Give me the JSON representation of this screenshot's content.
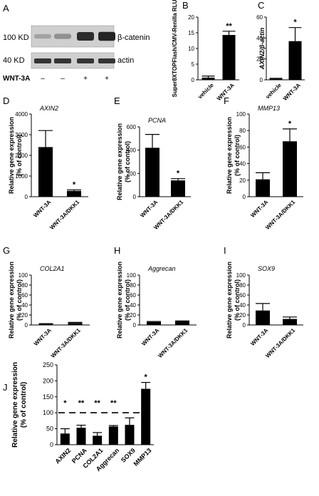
{
  "colors": {
    "bar": "#000000",
    "text": "#000000",
    "blot_bg": "#cfcfcf",
    "blot_band": "#1a1a1a"
  },
  "panel_a": {
    "letter": "A",
    "markers": [
      "100 KD",
      "40 KD"
    ],
    "bands": [
      "β-catenin",
      "actin"
    ],
    "treatment_label": "WNT-3A",
    "treatment_signs": [
      "–",
      "–",
      "+",
      "+"
    ],
    "beta_catenin_intensity": [
      0.25,
      0.35,
      0.9,
      0.95
    ],
    "actin_intensity": [
      0.85,
      0.85,
      0.85,
      0.85
    ]
  },
  "chart_data": [
    {
      "id": "B",
      "type": "bar",
      "title": "",
      "ylabel": "Super8XTOPFlash/CMV-Renilla RLU",
      "ylabel_italic": false,
      "ylim": [
        0,
        20
      ],
      "yticks": [
        0,
        5,
        10,
        15,
        20
      ],
      "categories": [
        "vehicle",
        "WNT-3A"
      ],
      "values": [
        0.7,
        14.3
      ],
      "errors": [
        0.5,
        1.2
      ],
      "significance": [
        "",
        "**"
      ]
    },
    {
      "id": "C",
      "type": "bar",
      "title": "",
      "ylabel": "AXIN2/β-actin",
      "ylabel_italic": true,
      "ylim": [
        0,
        60
      ],
      "yticks": [
        0,
        20,
        40,
        60
      ],
      "categories": [
        "vehicle",
        "WNT-3A"
      ],
      "values": [
        1,
        37
      ],
      "errors": [
        0.5,
        13
      ],
      "significance": [
        "",
        "*"
      ]
    },
    {
      "id": "D",
      "type": "bar",
      "title": "AXIN2",
      "ylabel": "Relative gene expression (% of control)",
      "ylabel_italic": false,
      "ylim": [
        0,
        4000
      ],
      "yticks": [
        0,
        1000,
        2000,
        3000,
        4000
      ],
      "categories": [
        "WNT-3A",
        "WNT-3A/DKK1"
      ],
      "values": [
        2400,
        280
      ],
      "errors": [
        800,
        50
      ],
      "significance": [
        "",
        "*"
      ]
    },
    {
      "id": "E",
      "type": "bar",
      "title": "PCNA",
      "ylabel": "Relative gene expression (% of control)",
      "ylabel_italic": false,
      "ylim": [
        0,
        600
      ],
      "yticks": [
        0,
        200,
        400,
        600
      ],
      "categories": [
        "WNT-3A",
        "WNT-3A/DKK1"
      ],
      "values": [
        420,
        140
      ],
      "errors": [
        115,
        15
      ],
      "significance": [
        "",
        "*"
      ]
    },
    {
      "id": "F",
      "type": "bar",
      "title": "MMP13",
      "ylabel": "Relative gene expression (% of control)",
      "ylabel_italic": false,
      "ylim": [
        0,
        100
      ],
      "yticks": [
        0,
        20,
        40,
        60,
        80,
        100
      ],
      "categories": [
        "WNT-3A",
        "WNT-3A/DKK1"
      ],
      "values": [
        21,
        67
      ],
      "errors": [
        8,
        15
      ],
      "significance": [
        "",
        "*"
      ]
    },
    {
      "id": "G",
      "type": "bar",
      "title": "COL2A1",
      "ylabel": "Relative gene expression (% of control)",
      "ylabel_italic": false,
      "ylim": [
        0,
        100
      ],
      "yticks": [
        0,
        20,
        40,
        60,
        80,
        100
      ],
      "categories": [
        "WNT-3A",
        "WNT-3A/DKK1"
      ],
      "values": [
        2,
        4
      ],
      "errors": [
        0.8,
        1.2
      ],
      "significance": [
        "",
        ""
      ]
    },
    {
      "id": "H",
      "type": "bar",
      "title": "Aggrecan",
      "ylabel": "Relative gene expression (% of control)",
      "ylabel_italic": false,
      "ylim": [
        0,
        100
      ],
      "yticks": [
        0,
        20,
        40,
        60,
        80,
        100
      ],
      "categories": [
        "WNT-3A",
        "WNT-3A/DKK1"
      ],
      "values": [
        6,
        7
      ],
      "errors": [
        1,
        1
      ],
      "significance": [
        "",
        ""
      ]
    },
    {
      "id": "I",
      "type": "bar",
      "title": "SOX9",
      "ylabel": "Relative gene expression (% of control)",
      "ylabel_italic": false,
      "ylim": [
        0,
        100
      ],
      "yticks": [
        0,
        20,
        40,
        60,
        80,
        100
      ],
      "categories": [
        "WNT-3A",
        "WNT-3A/DKK1"
      ],
      "values": [
        29,
        12
      ],
      "errors": [
        14,
        4
      ],
      "significance": [
        "",
        ""
      ]
    },
    {
      "id": "J",
      "type": "bar",
      "title": "",
      "ylabel": "Relative gene expression (% of control)",
      "ylabel_italic": false,
      "ylim": [
        0,
        250
      ],
      "yticks": [
        0,
        50,
        100,
        150,
        200,
        250
      ],
      "categories": [
        "AXIN2",
        "PCNA",
        "COL2A1",
        "Aggrecan",
        "SOX9",
        "MMP13"
      ],
      "values": [
        35,
        53,
        28,
        57,
        62,
        175
      ],
      "errors": [
        15,
        8,
        10,
        3,
        22,
        20
      ],
      "significance": [
        "*",
        "**",
        "**",
        "**",
        "",
        "*"
      ],
      "reference_line": 100
    }
  ]
}
